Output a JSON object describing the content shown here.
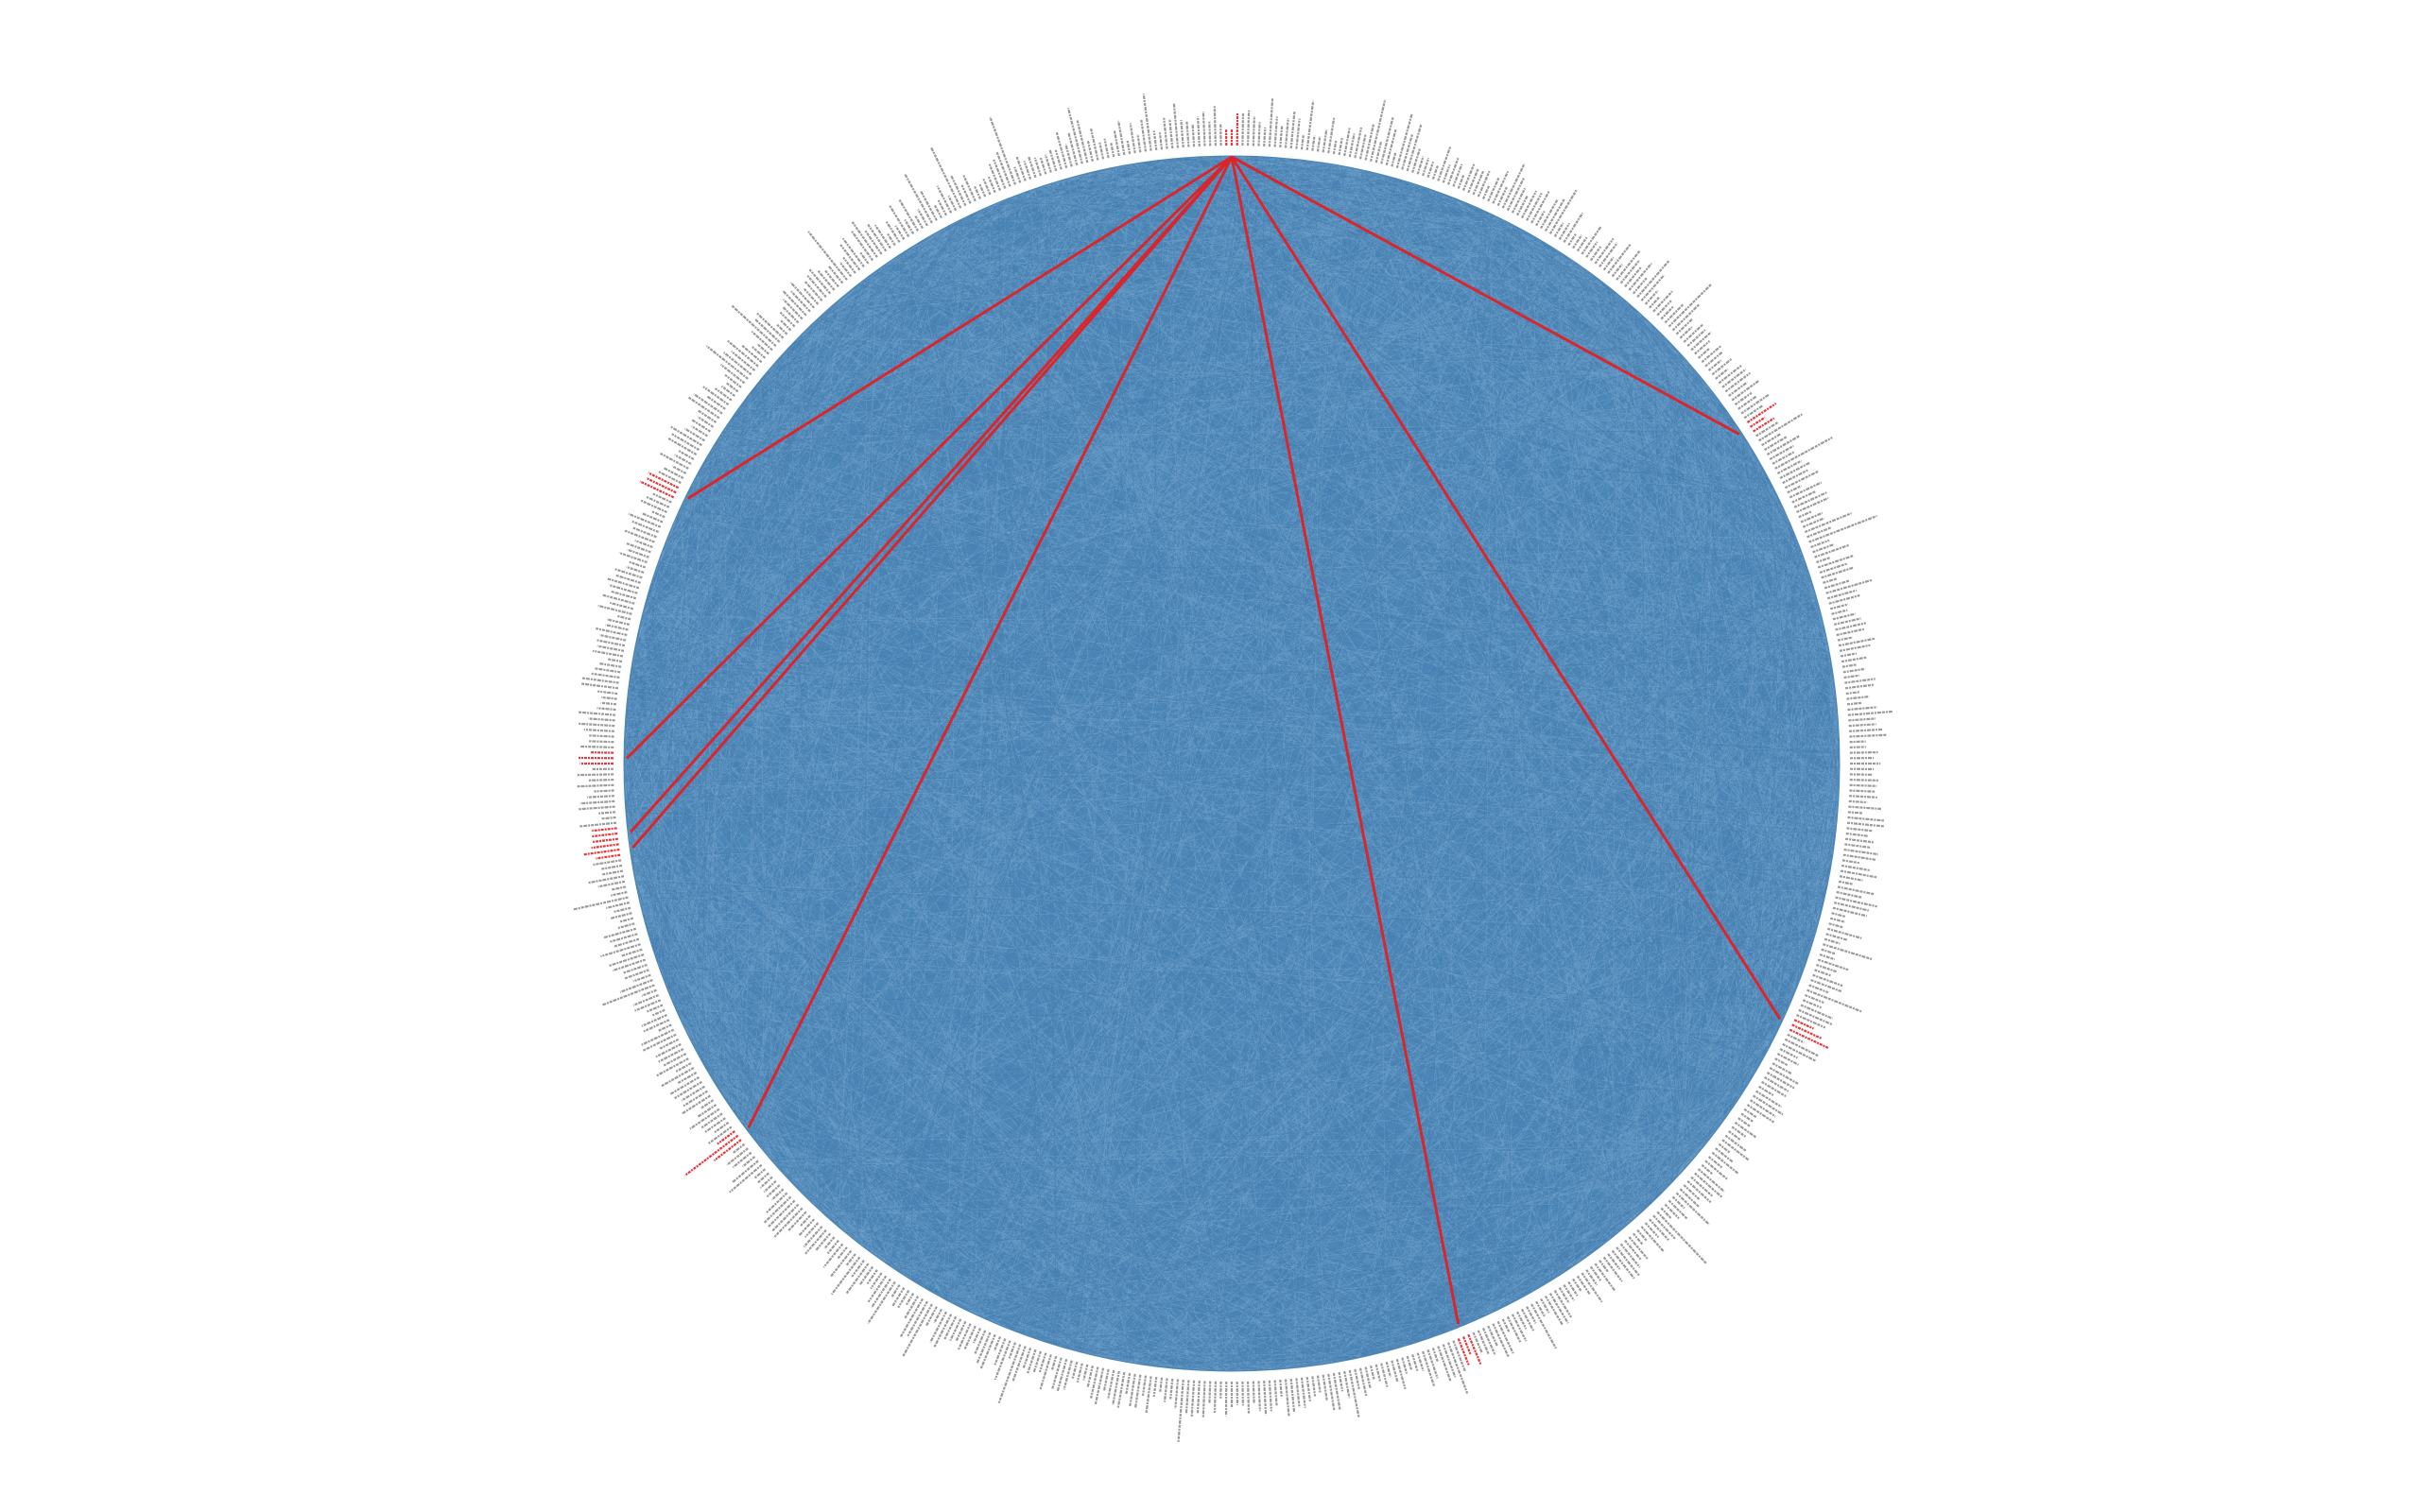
{
  "diagram": {
    "type": "circular-network",
    "node_count": 720,
    "background_edge_color": "#4d87b8",
    "highlight_edge_color": "#d9262d",
    "label_color": "#7a7a7a",
    "highlight_label_color": "#e8383c",
    "ring_color": "#ffffff",
    "hub_angle_deg": -90,
    "highlight_target_angles_deg": [
      -33,
      25,
      68,
      143,
      172,
      173.5,
      180.5,
      206
    ]
  }
}
